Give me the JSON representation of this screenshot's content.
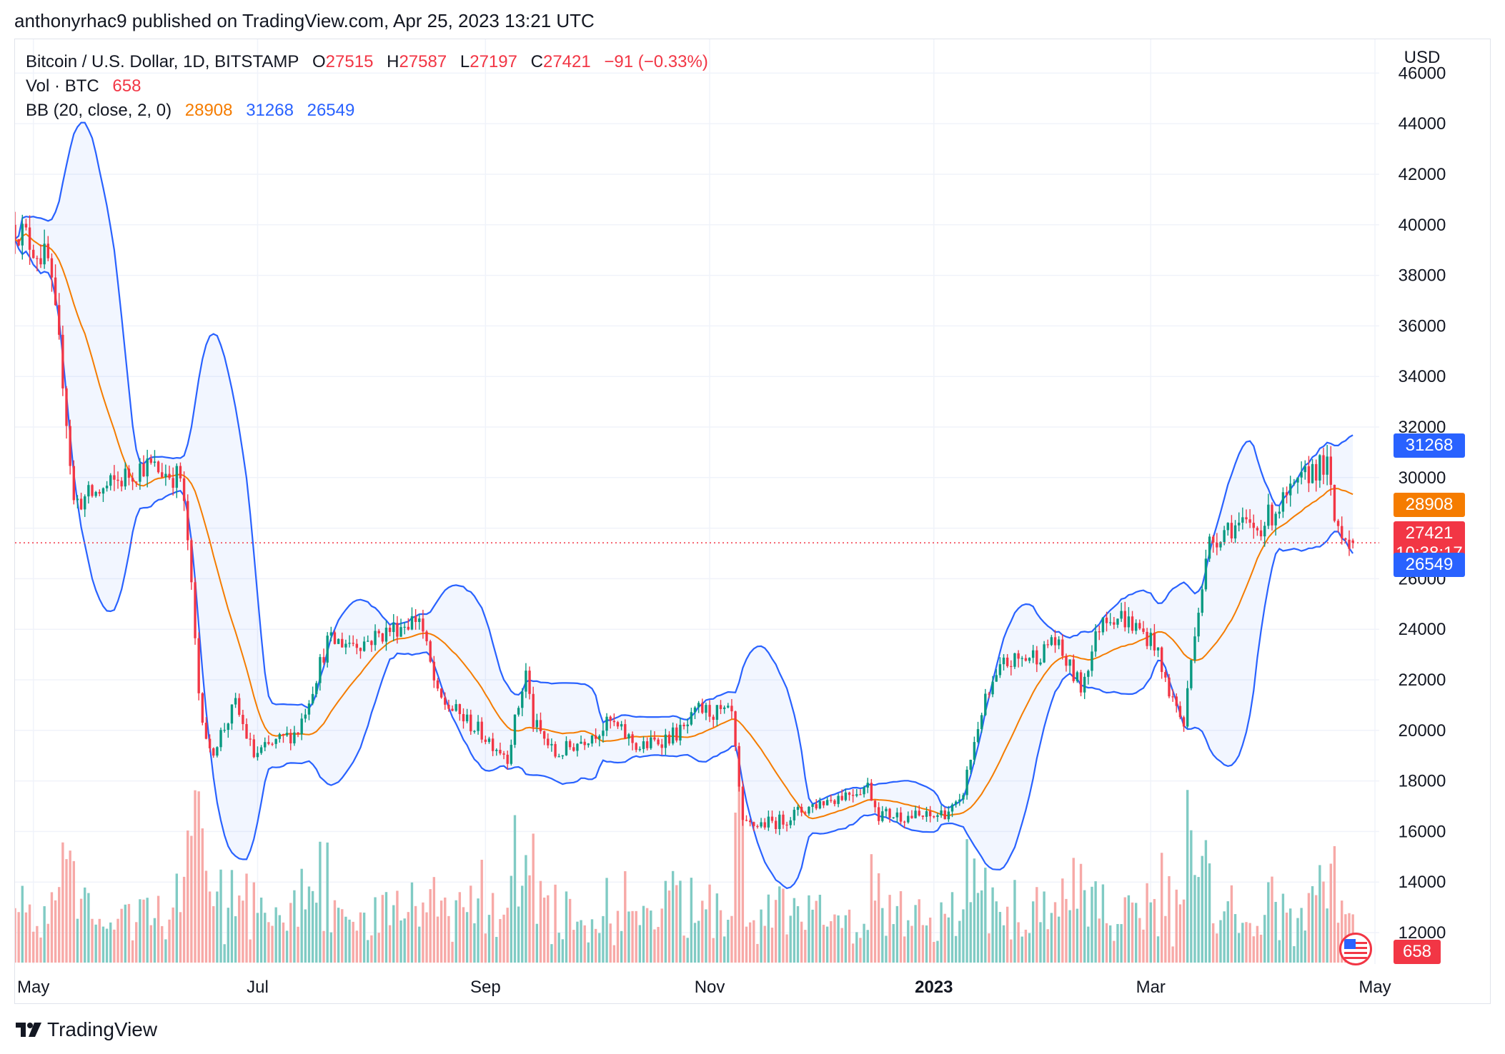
{
  "header": {
    "published": "anthonyrhac9 published on TradingView.com, Apr 25, 2023 13:21 UTC"
  },
  "legend": {
    "symbol": "Bitcoin / U.S. Dollar, 1D, BITSTAMP",
    "o_label": "O",
    "o_value": "27515",
    "h_label": "H",
    "h_value": "27587",
    "l_label": "L",
    "l_value": "27197",
    "c_label": "C",
    "c_value": "27421",
    "change": "−91 (−0.33%)",
    "vol_label": "Vol · BTC",
    "vol_value": "658",
    "bb_label": "BB (20, close, 2, 0)",
    "bb_basis": "28908",
    "bb_upper": "31268",
    "bb_lower": "26549"
  },
  "axis": {
    "currency": "USD",
    "price_ticks": [
      "46000",
      "44000",
      "42000",
      "40000",
      "38000",
      "36000",
      "34000",
      "32000",
      "30000",
      "28000",
      "26000",
      "24000",
      "22000",
      "20000",
      "18000",
      "16000",
      "14000",
      "12000"
    ],
    "time_ticks": [
      {
        "label": "May",
        "date": "2022-05-01",
        "bold": false
      },
      {
        "label": "Jul",
        "date": "2022-07-01",
        "bold": false
      },
      {
        "label": "Sep",
        "date": "2022-09-01",
        "bold": false
      },
      {
        "label": "Nov",
        "date": "2022-11-01",
        "bold": false
      },
      {
        "label": "2023",
        "date": "2023-01-01",
        "bold": true
      },
      {
        "label": "Mar",
        "date": "2023-03-01",
        "bold": false
      },
      {
        "label": "May",
        "date": "2023-05-01",
        "bold": false
      }
    ]
  },
  "price_labels": {
    "upper": "31268",
    "basis": "28908",
    "last": "27421",
    "countdown": "10:38:17",
    "lower": "26549",
    "volume": "658"
  },
  "footer": {
    "brand": "TradingView"
  },
  "colors": {
    "up": "#089981",
    "down": "#f23645",
    "band": "#2962ff",
    "basis": "#f57c00",
    "band_fill": "#2962ff",
    "vol_up": "#80cbc4",
    "vol_down": "#f7a9a7"
  },
  "chart_data": {
    "type": "candlestick",
    "symbol": "BTCUSD",
    "interval": "1D",
    "y_range": [
      11000,
      46500
    ],
    "x_range": [
      "2022-04-26",
      "2023-05-01"
    ],
    "last_price": 27421,
    "anchors": [
      {
        "date": "2022-04-26",
        "close": 40000
      },
      {
        "date": "2022-05-05",
        "close": 38500
      },
      {
        "date": "2022-05-09",
        "close": 34000
      },
      {
        "date": "2022-05-12",
        "close": 29000
      },
      {
        "date": "2022-05-20",
        "close": 29500
      },
      {
        "date": "2022-05-31",
        "close": 30500
      },
      {
        "date": "2022-06-10",
        "close": 30000
      },
      {
        "date": "2022-06-12",
        "close": 27500
      },
      {
        "date": "2022-06-15",
        "close": 21500
      },
      {
        "date": "2022-06-18",
        "close": 19000
      },
      {
        "date": "2022-06-25",
        "close": 21000
      },
      {
        "date": "2022-06-30",
        "close": 19000
      },
      {
        "date": "2022-07-12",
        "close": 20000
      },
      {
        "date": "2022-07-20",
        "close": 23500
      },
      {
        "date": "2022-07-30",
        "close": 23500
      },
      {
        "date": "2022-08-14",
        "close": 24500
      },
      {
        "date": "2022-08-19",
        "close": 21300
      },
      {
        "date": "2022-08-30",
        "close": 20000
      },
      {
        "date": "2022-09-07",
        "close": 19000
      },
      {
        "date": "2022-09-12",
        "close": 22300
      },
      {
        "date": "2022-09-14",
        "close": 20300
      },
      {
        "date": "2022-09-20",
        "close": 19000
      },
      {
        "date": "2022-10-05",
        "close": 20300
      },
      {
        "date": "2022-10-13",
        "close": 19300
      },
      {
        "date": "2022-10-25",
        "close": 20000
      },
      {
        "date": "2022-10-29",
        "close": 20800
      },
      {
        "date": "2022-11-07",
        "close": 20600
      },
      {
        "date": "2022-11-09",
        "close": 17600
      },
      {
        "date": "2022-11-10",
        "close": 16200
      },
      {
        "date": "2022-11-20",
        "close": 16400
      },
      {
        "date": "2022-11-30",
        "close": 17100
      },
      {
        "date": "2022-12-14",
        "close": 17800
      },
      {
        "date": "2022-12-17",
        "close": 16700
      },
      {
        "date": "2022-12-31",
        "close": 16550
      },
      {
        "date": "2023-01-08",
        "close": 17000
      },
      {
        "date": "2023-01-14",
        "close": 20800
      },
      {
        "date": "2023-01-20",
        "close": 22600
      },
      {
        "date": "2023-01-31",
        "close": 23100
      },
      {
        "date": "2023-02-02",
        "close": 23700
      },
      {
        "date": "2023-02-10",
        "close": 21700
      },
      {
        "date": "2023-02-16",
        "close": 24600
      },
      {
        "date": "2023-02-21",
        "close": 24500
      },
      {
        "date": "2023-03-02",
        "close": 23500
      },
      {
        "date": "2023-03-04",
        "close": 22300
      },
      {
        "date": "2023-03-10",
        "close": 20200
      },
      {
        "date": "2023-03-13",
        "close": 24100
      },
      {
        "date": "2023-03-17",
        "close": 27400
      },
      {
        "date": "2023-03-22",
        "close": 28100
      },
      {
        "date": "2023-03-30",
        "close": 28000
      },
      {
        "date": "2023-04-10",
        "close": 29600
      },
      {
        "date": "2023-04-14",
        "close": 30400
      },
      {
        "date": "2023-04-18",
        "close": 30400
      },
      {
        "date": "2023-04-20",
        "close": 28300
      },
      {
        "date": "2023-04-25",
        "close": 27421
      }
    ]
  }
}
